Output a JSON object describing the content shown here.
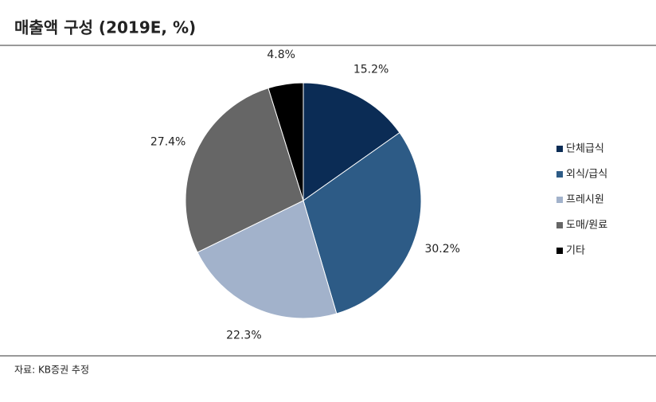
{
  "chart_data": {
    "type": "pie",
    "title": "매출액 구성 (2019E, %)",
    "categories": [
      "단체급식",
      "외식/급식",
      "프레시원",
      "도매/원료",
      "기타"
    ],
    "values": [
      15.2,
      30.2,
      22.3,
      27.4,
      4.8
    ],
    "value_labels": [
      "15.2%",
      "30.2%",
      "22.3%",
      "27.4%",
      "4.8%"
    ],
    "colors": [
      "#0b2c55",
      "#2d5b86",
      "#a2b2cb",
      "#666666",
      "#000000"
    ],
    "legend": "right",
    "source": "자료: KB증권 추정"
  }
}
